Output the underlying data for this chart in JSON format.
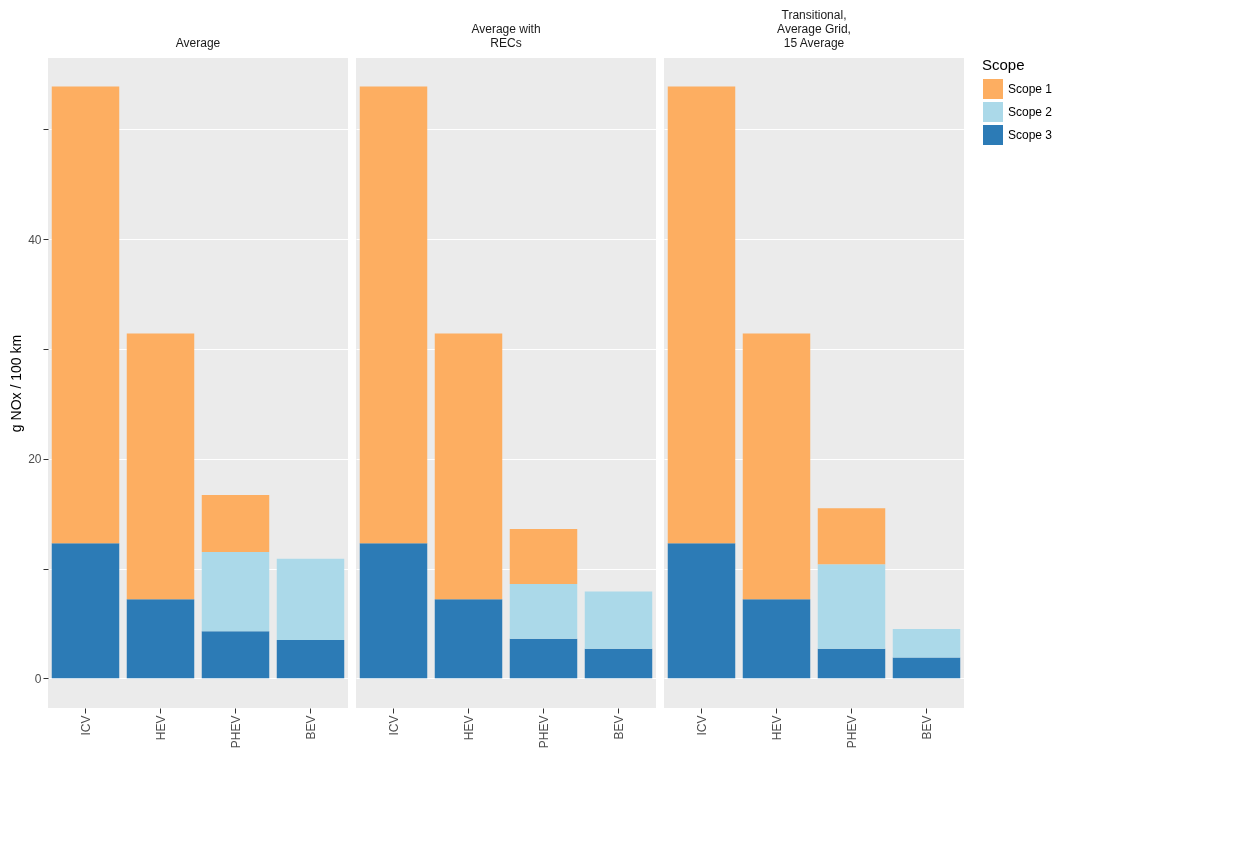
{
  "chart_data": [
    {
      "type": "bar",
      "stacked": true,
      "title": "Average",
      "ylabel": "g NOx / 100 km",
      "categories": [
        "ICV",
        "HEV",
        "PHEV",
        "BEV"
      ],
      "ylim": [
        -2.7,
        56.5
      ],
      "yticks": [
        0,
        {
          "value": 10,
          "label": null
        },
        20,
        {
          "value": 30,
          "label": null
        },
        40,
        {
          "value": 50,
          "label": null
        }
      ],
      "grid": true,
      "legend": false,
      "series": [
        {
          "color": "#2c7bb6",
          "values": [
            12.3,
            7.2,
            4.3,
            3.5
          ]
        },
        {
          "color": "#abd9e9",
          "values": [
            0,
            0,
            7.2,
            7.4
          ]
        },
        {
          "color": "#fdae61",
          "values": [
            41.6,
            24.2,
            5.2,
            0
          ]
        }
      ]
    },
    {
      "type": "bar",
      "stacked": true,
      "title": "Average with\nRECs",
      "categories": [
        "ICV",
        "HEV",
        "PHEV",
        "BEV"
      ],
      "ylim": [
        -2.7,
        56.5
      ],
      "yticks": [
        0,
        {
          "value": 10,
          "label": null
        },
        20,
        {
          "value": 30,
          "label": null
        },
        40,
        {
          "value": 50,
          "label": null
        }
      ],
      "grid": true,
      "legend": false,
      "tick_labels": "x",
      "series": [
        {
          "color": "#2c7bb6",
          "values": [
            12.3,
            7.2,
            3.6,
            2.7
          ]
        },
        {
          "color": "#abd9e9",
          "values": [
            0,
            0,
            5.0,
            5.2
          ]
        },
        {
          "color": "#fdae61",
          "values": [
            41.6,
            24.2,
            5.0,
            0
          ]
        }
      ]
    },
    {
      "type": "bar",
      "stacked": true,
      "title": "Transitional,\nAverage Grid,\n15 Average",
      "legend_title": "Scope",
      "categories": [
        "ICV",
        "HEV",
        "PHEV",
        "BEV"
      ],
      "ylim": [
        -2.7,
        56.5
      ],
      "yticks": [
        0,
        {
          "value": 10,
          "label": null
        },
        20,
        {
          "value": 30,
          "label": null
        },
        40,
        {
          "value": 50,
          "label": null
        }
      ],
      "grid": true,
      "legend": "right",
      "tick_labels": "x",
      "series": [
        {
          "name": "Scope 3",
          "color": "#2c7bb6",
          "values": [
            12.3,
            7.2,
            2.7,
            1.9
          ]
        },
        {
          "name": "Scope 2",
          "color": "#abd9e9",
          "values": [
            0,
            0,
            7.7,
            2.6
          ]
        },
        {
          "name": "Scope 1",
          "color": "#fdae61",
          "values": [
            41.6,
            24.2,
            5.1,
            0
          ]
        }
      ]
    }
  ]
}
